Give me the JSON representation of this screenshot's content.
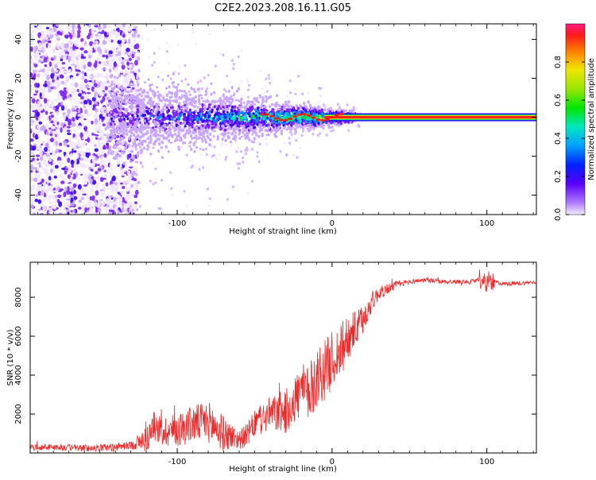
{
  "title": "C2E2.2023.208.16.11.G05",
  "colors": {
    "snr_line": "#ee2a2a",
    "axis": "#000000",
    "spectrogram_low": "#d9c2f5",
    "spectrogram_mid": "#6a00ff",
    "ridge": "#ff1a1a"
  },
  "chart_data": [
    {
      "type": "heatmap",
      "name": "spectrogram",
      "xlabel": "Height of straight line (km)",
      "ylabel": "Frequency (Hz)",
      "xlim": [
        -195,
        132
      ],
      "ylim": [
        -50,
        48
      ],
      "xticks": [
        -100,
        0,
        100
      ],
      "yticks": [
        -40,
        -20,
        0,
        20,
        40
      ],
      "xtick_labels": [
        "-100",
        "0",
        "100"
      ],
      "ytick_labels": [
        "-40",
        "-20",
        "0",
        "20",
        "40"
      ],
      "colorbar": {
        "label": "Normalized spectral amplitude",
        "range": [
          0,
          1
        ],
        "ticks": [
          0.0,
          0.2,
          0.4,
          0.6,
          0.8
        ],
        "tick_labels": [
          "0.0",
          "0.2",
          "0.4",
          "0.6",
          "0.8"
        ]
      },
      "description_regions": [
        {
          "x_range": [
            -195,
            -130
          ],
          "freq_spread": 50,
          "amplitude": 0.15
        },
        {
          "x_range": [
            -130,
            -60
          ],
          "freq_spread": 8,
          "amplitude": 0.45
        },
        {
          "x_range": [
            -60,
            0
          ],
          "freq_spread": 4,
          "amplitude": 0.7
        },
        {
          "x_range": [
            0,
            132
          ],
          "freq_spread": 1,
          "amplitude": 0.95
        }
      ]
    },
    {
      "type": "line",
      "name": "snr",
      "xlabel": "Height of straight line (km)",
      "ylabel": "SNR (10 * v/v)",
      "xlim": [
        -195,
        132
      ],
      "ylim": [
        0,
        9800
      ],
      "xticks": [
        -100,
        0,
        100
      ],
      "yticks": [
        2000,
        4000,
        6000,
        8000
      ],
      "xtick_labels": [
        "-100",
        "0",
        "100"
      ],
      "ytick_labels": [
        "2000",
        "4000",
        "6000",
        "8000"
      ],
      "series": [
        {
          "name": "SNR",
          "x": [
            -195,
            -180,
            -160,
            -140,
            -130,
            -120,
            -115,
            -110,
            -100,
            -90,
            -80,
            -75,
            -70,
            -60,
            -55,
            -50,
            -40,
            -30,
            -20,
            -15,
            -10,
            -5,
            0,
            5,
            10,
            15,
            20,
            25,
            30,
            40,
            50,
            60,
            70,
            80,
            90,
            95,
            100,
            105,
            110,
            120,
            132
          ],
          "y": [
            300,
            300,
            250,
            300,
            400,
            700,
            1400,
            1100,
            1200,
            1500,
            1600,
            1300,
            1000,
            700,
            900,
            1500,
            2000,
            2100,
            3200,
            3000,
            3900,
            4200,
            4800,
            5200,
            6000,
            6300,
            6800,
            7700,
            8200,
            8600,
            8800,
            8900,
            8800,
            8800,
            8800,
            8900,
            8700,
            8800,
            8700,
            8700,
            8800
          ]
        }
      ],
      "noise_profile": {
        "x": [
          -195,
          -130,
          -120,
          -75,
          -60,
          -40,
          -20,
          -10,
          0,
          10,
          20,
          30,
          50,
          132
        ],
        "amplitude": [
          150,
          200,
          700,
          1100,
          500,
          900,
          1400,
          1600,
          1500,
          1200,
          800,
          350,
          120,
          100
        ]
      }
    }
  ]
}
